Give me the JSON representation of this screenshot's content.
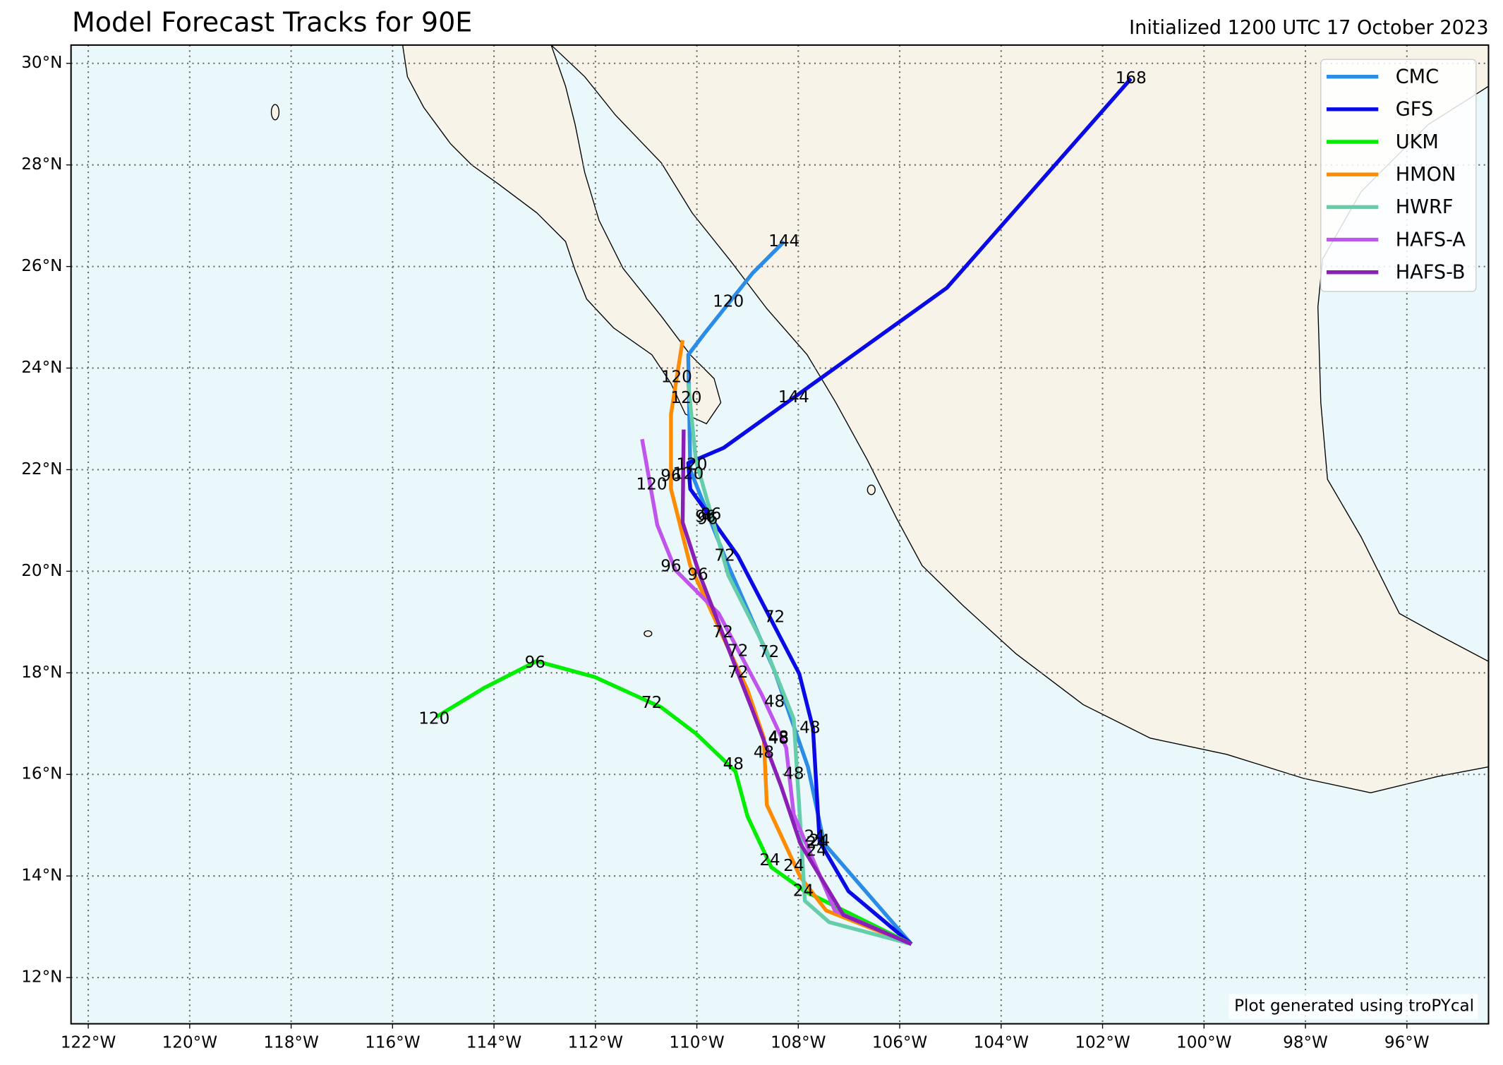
{
  "chart_data": {
    "type": "map",
    "title": "Model Forecast Tracks for 90E",
    "subtitle": "Initialized 1200 UTC 17 October 2023",
    "credit": "Plot generated using troPYcal",
    "xlim": [
      -122.34,
      -94.39
    ],
    "ylim": [
      11.09,
      30.36
    ],
    "xticks": [
      {
        "value": -122,
        "label": "122°W"
      },
      {
        "value": -120,
        "label": "120°W"
      },
      {
        "value": -118,
        "label": "118°W"
      },
      {
        "value": -116,
        "label": "116°W"
      },
      {
        "value": -114,
        "label": "114°W"
      },
      {
        "value": -112,
        "label": "112°W"
      },
      {
        "value": -110,
        "label": "110°W"
      },
      {
        "value": -108,
        "label": "108°W"
      },
      {
        "value": -106,
        "label": "106°W"
      },
      {
        "value": -104,
        "label": "104°W"
      },
      {
        "value": -102,
        "label": "102°W"
      },
      {
        "value": -100,
        "label": "100°W"
      },
      {
        "value": -98,
        "label": "98°W"
      },
      {
        "value": -96,
        "label": "96°W"
      }
    ],
    "yticks": [
      {
        "value": 12,
        "label": "12°N"
      },
      {
        "value": 14,
        "label": "14°N"
      },
      {
        "value": 16,
        "label": "16°N"
      },
      {
        "value": 18,
        "label": "18°N"
      },
      {
        "value": 20,
        "label": "20°N"
      },
      {
        "value": 22,
        "label": "22°N"
      },
      {
        "value": 24,
        "label": "24°N"
      },
      {
        "value": 26,
        "label": "26°N"
      },
      {
        "value": 28,
        "label": "28°N"
      },
      {
        "value": 30,
        "label": "30°N"
      }
    ],
    "grid": true,
    "legend": "upper right",
    "series": [
      {
        "name": "CMC",
        "color": "#2b8ce8",
        "x": [
          -105.77,
          -107.49,
          -107.81,
          -108.47,
          -109.38,
          -110.13,
          -110.17,
          -109.85,
          -108.9,
          -108.28
        ],
        "values": [
          12.66,
          14.64,
          16.15,
          18.04,
          20.11,
          22.0,
          24.26,
          24.68,
          25.87,
          26.49
        ],
        "labels": [
          {
            "value": 24,
            "x": -107.68,
            "y": 14.77
          },
          {
            "value": 48,
            "x": -108.39,
            "y": 16.72
          },
          {
            "value": 72,
            "x": -109.45,
            "y": 20.3
          },
          {
            "value": 96,
            "x": -109.79,
            "y": 21.02
          },
          {
            "value": 120,
            "x": -109.38,
            "y": 25.3
          },
          {
            "value": 144,
            "x": -108.28,
            "y": 26.49
          }
        ]
      },
      {
        "name": "GFS",
        "color": "#0a0ae6",
        "x": [
          -105.77,
          -107.01,
          -107.58,
          -107.71,
          -107.98,
          -109.19,
          -110.13,
          -110.17,
          -109.47,
          -105.07,
          -101.44
        ],
        "values": [
          12.66,
          13.7,
          14.68,
          16.91,
          17.98,
          20.3,
          21.62,
          22.13,
          22.43,
          25.58,
          29.7
        ],
        "labels": [
          {
            "value": 24,
            "x": -107.58,
            "y": 14.68
          },
          {
            "value": 48,
            "x": -107.77,
            "y": 16.91
          },
          {
            "value": 72,
            "x": -108.47,
            "y": 19.09
          },
          {
            "value": 96,
            "x": -109.72,
            "y": 21.11
          },
          {
            "value": 120,
            "x": -110.1,
            "y": 22.09
          },
          {
            "value": 144,
            "x": -108.09,
            "y": 23.42
          },
          {
            "value": 168,
            "x": -101.44,
            "y": 29.7
          }
        ]
      },
      {
        "name": "UKM",
        "color": "#00ee00",
        "x": [
          -105.77,
          -107.87,
          -108.53,
          -109.0,
          -109.24,
          -110.0,
          -110.7,
          -112.02,
          -113.16,
          -114.2,
          -115.14
        ],
        "values": [
          12.66,
          13.7,
          14.17,
          15.17,
          16.06,
          16.79,
          17.32,
          17.92,
          18.23,
          17.7,
          17.13
        ],
        "labels": [
          {
            "value": 24,
            "x": -108.56,
            "y": 14.3
          },
          {
            "value": 48,
            "x": -109.28,
            "y": 16.19
          },
          {
            "value": 72,
            "x": -110.89,
            "y": 17.4
          },
          {
            "value": 96,
            "x": -113.19,
            "y": 18.19
          },
          {
            "value": 120,
            "x": -115.18,
            "y": 17.09
          }
        ]
      },
      {
        "name": "HMON",
        "color": "#ff8c00",
        "x": [
          -105.77,
          -107.45,
          -107.96,
          -108.62,
          -108.68,
          -109.0,
          -110.13,
          -110.51,
          -110.51,
          -110.28
        ],
        "values": [
          12.66,
          13.32,
          13.98,
          15.4,
          16.72,
          17.66,
          20.11,
          21.62,
          23.09,
          24.55
        ],
        "labels": [
          {
            "value": 24,
            "x": -108.09,
            "y": 14.19
          },
          {
            "value": 48,
            "x": -108.68,
            "y": 16.42
          },
          {
            "value": 72,
            "x": -109.49,
            "y": 18.79
          },
          {
            "value": 96,
            "x": -110.51,
            "y": 21.87
          },
          {
            "value": 120,
            "x": -110.4,
            "y": 23.81
          }
        ]
      },
      {
        "name": "HWRF",
        "color": "#66cdaa",
        "x": [
          -105.77,
          -107.39,
          -107.87,
          -107.96,
          -108.09,
          -108.62,
          -109.38,
          -110.02,
          -110.17
        ],
        "values": [
          12.66,
          13.09,
          13.51,
          15.02,
          17.09,
          18.42,
          19.92,
          22.19,
          23.7
        ],
        "labels": [
          {
            "value": 24,
            "x": -107.9,
            "y": 13.7
          },
          {
            "value": 48,
            "x": -108.09,
            "y": 16.0
          },
          {
            "value": 72,
            "x": -108.58,
            "y": 18.4
          },
          {
            "value": 96,
            "x": -109.83,
            "y": 21.06
          },
          {
            "value": 120,
            "x": -110.21,
            "y": 23.4
          }
        ]
      },
      {
        "name": "HAFS-A",
        "color": "#bf55ec",
        "x": [
          -105.77,
          -107.28,
          -108.09,
          -108.24,
          -108.72,
          -109.57,
          -110.42,
          -110.78,
          -111.08
        ],
        "values": [
          12.66,
          13.32,
          15.21,
          16.53,
          17.57,
          19.17,
          20.02,
          20.91,
          22.6
        ],
        "labels": [
          {
            "value": 24,
            "x": -107.64,
            "y": 14.49
          },
          {
            "value": 48,
            "x": -108.47,
            "y": 17.42
          },
          {
            "value": 72,
            "x": -109.19,
            "y": 18.42
          },
          {
            "value": 96,
            "x": -110.51,
            "y": 20.09
          },
          {
            "value": 120,
            "x": -110.89,
            "y": 21.7
          }
        ]
      },
      {
        "name": "HAFS-B",
        "color": "#8a1fb5",
        "x": [
          -105.77,
          -107.11,
          -107.96,
          -108.34,
          -108.91,
          -109.94,
          -110.28,
          -110.26
        ],
        "values": [
          12.66,
          13.23,
          14.64,
          15.77,
          17.28,
          19.92,
          20.96,
          22.79
        ],
        "labels": [
          {
            "value": 24,
            "x": -107.64,
            "y": 14.64
          },
          {
            "value": 48,
            "x": -108.39,
            "y": 16.7
          },
          {
            "value": 72,
            "x": -109.19,
            "y": 18.0
          },
          {
            "value": 96,
            "x": -109.98,
            "y": 19.92
          },
          {
            "value": 120,
            "x": -110.17,
            "y": 21.91
          }
        ]
      }
    ]
  }
}
